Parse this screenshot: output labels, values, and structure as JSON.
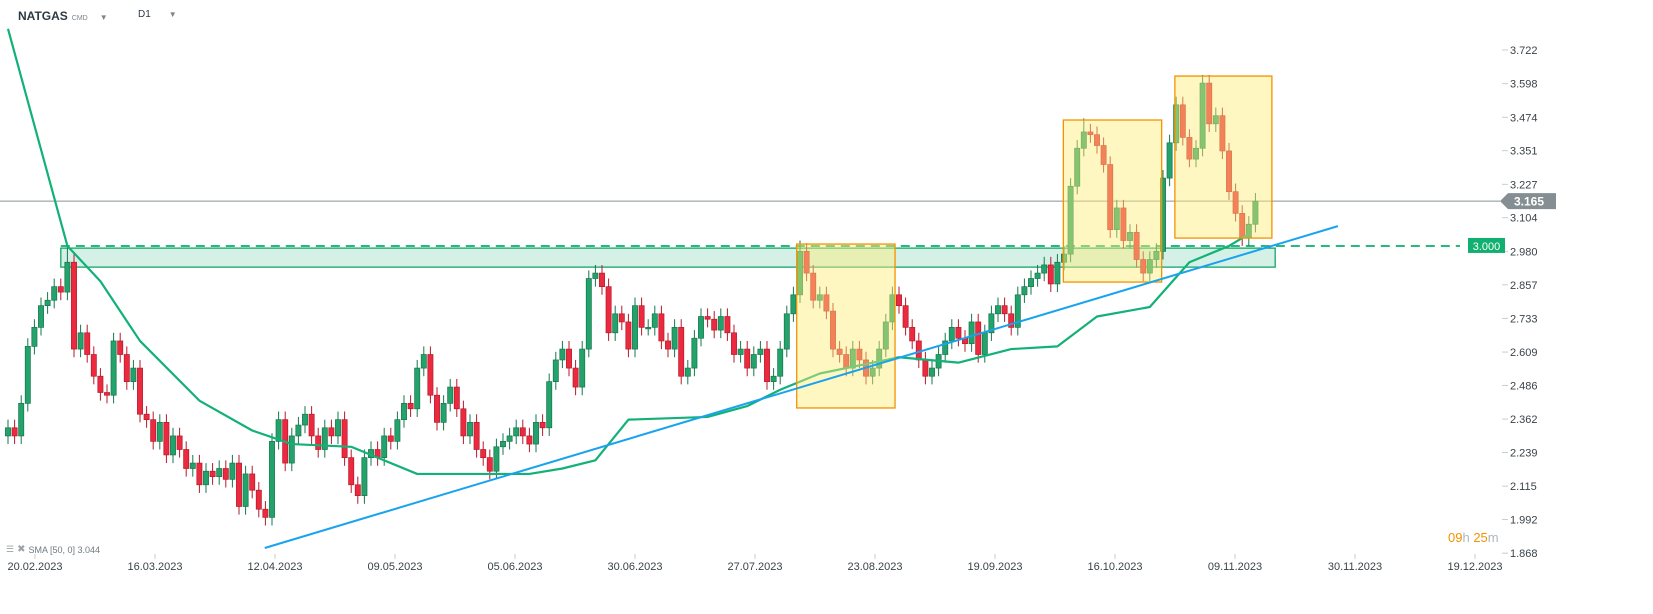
{
  "header": {
    "symbol": "NATGAS",
    "market": "CMD",
    "timeframe": "D1"
  },
  "indicator_legend": {
    "label": "SMA [50, 0] 3.044"
  },
  "timer": {
    "hours": "09",
    "h": "h",
    "minutes": "25",
    "m": "m"
  },
  "colors": {
    "up": "#23a26b",
    "down": "#ec2a3f",
    "sma": "#12b177",
    "trend": "#19a3ee",
    "box": "#f39200",
    "zone": "#14a56a"
  },
  "chart_data": {
    "type": "candlestick",
    "title": "NATGAS D1",
    "y_ticks": [
      3.722,
      3.598,
      3.474,
      3.351,
      3.227,
      3.104,
      2.98,
      2.857,
      2.733,
      2.609,
      2.486,
      2.362,
      2.239,
      2.115,
      1.992,
      1.868
    ],
    "ylim": [
      1.868,
      3.722
    ],
    "x_labels": [
      "20.02.2023",
      "16.03.2023",
      "12.04.2023",
      "09.05.2023",
      "05.06.2023",
      "30.06.2023",
      "27.07.2023",
      "23.08.2023",
      "19.09.2023",
      "16.10.2023",
      "09.11.2023",
      "30.11.2023",
      "19.12.2023"
    ],
    "close": [
      2.33,
      2.3,
      2.42,
      2.63,
      2.7,
      2.78,
      2.8,
      2.85,
      2.83,
      2.94,
      2.62,
      2.68,
      2.6,
      2.52,
      2.46,
      2.45,
      2.65,
      2.6,
      2.5,
      2.55,
      2.38,
      2.36,
      2.28,
      2.35,
      2.23,
      2.3,
      2.25,
      2.18,
      2.2,
      2.12,
      2.17,
      2.15,
      2.18,
      2.14,
      2.2,
      2.04,
      2.16,
      2.1,
      2.03,
      2.0,
      2.28,
      2.36,
      2.2,
      2.3,
      2.34,
      2.38,
      2.3,
      2.25,
      2.33,
      2.3,
      2.36,
      2.22,
      2.12,
      2.08,
      2.22,
      2.25,
      2.22,
      2.3,
      2.28,
      2.36,
      2.42,
      2.4,
      2.55,
      2.6,
      2.45,
      2.35,
      2.42,
      2.48,
      2.4,
      2.3,
      2.35,
      2.25,
      2.22,
      2.17,
      2.26,
      2.28,
      2.3,
      2.33,
      2.3,
      2.27,
      2.35,
      2.33,
      2.5,
      2.58,
      2.62,
      2.55,
      2.48,
      2.62,
      2.88,
      2.9,
      2.85,
      2.68,
      2.75,
      2.72,
      2.62,
      2.78,
      2.7,
      2.7,
      2.75,
      2.65,
      2.62,
      2.7,
      2.52,
      2.55,
      2.66,
      2.74,
      2.73,
      2.69,
      2.74,
      2.68,
      2.6,
      2.62,
      2.55,
      2.6,
      2.62,
      2.5,
      2.52,
      2.62,
      2.75,
      2.82,
      2.98,
      2.9,
      2.8,
      2.82,
      2.76,
      2.62,
      2.6,
      2.55,
      2.62,
      2.58,
      2.52,
      2.55,
      2.62,
      2.72,
      2.82,
      2.78,
      2.7,
      2.65,
      2.58,
      2.52,
      2.55,
      2.6,
      2.65,
      2.7,
      2.66,
      2.64,
      2.72,
      2.6,
      2.68,
      2.75,
      2.78,
      2.75,
      2.7,
      2.82,
      2.85,
      2.88,
      2.9,
      2.93,
      2.86,
      2.94,
      2.97,
      3.22,
      3.36,
      3.42,
      3.41,
      3.37,
      3.3,
      3.06,
      3.14,
      3.02,
      3.05,
      2.95,
      2.9,
      2.95,
      2.98,
      3.25,
      3.38,
      3.52,
      3.4,
      3.32,
      3.36,
      3.6,
      3.45,
      3.48,
      3.35,
      3.2,
      3.12,
      3.03,
      3.08,
      3.165
    ],
    "first_open": 2.3,
    "wick": 0.03,
    "high_overrides": {
      "9": 3.0,
      "89": 2.93,
      "120": 3.02,
      "163": 3.47,
      "181": 3.63
    },
    "sma50": [
      [
        0,
        3.8
      ],
      [
        9,
        3.0
      ],
      [
        14,
        2.87
      ],
      [
        20,
        2.65
      ],
      [
        29,
        2.43
      ],
      [
        37,
        2.32
      ],
      [
        43,
        2.27
      ],
      [
        52,
        2.26
      ],
      [
        62,
        2.16
      ],
      [
        72,
        2.16
      ],
      [
        79,
        2.16
      ],
      [
        84,
        2.18
      ],
      [
        89,
        2.21
      ],
      [
        94,
        2.36
      ],
      [
        106,
        2.37
      ],
      [
        112,
        2.41
      ],
      [
        117,
        2.47
      ],
      [
        123,
        2.53
      ],
      [
        131,
        2.57
      ],
      [
        135,
        2.59
      ],
      [
        144,
        2.57
      ],
      [
        152,
        2.62
      ],
      [
        159,
        2.63
      ],
      [
        165,
        2.74
      ],
      [
        173,
        2.775
      ],
      [
        179,
        2.94
      ],
      [
        185,
        3.0
      ],
      [
        188,
        3.044
      ]
    ],
    "current_price": 3.165,
    "level": 3.0,
    "resistance_zone": {
      "from_index": 8,
      "to_index": 192,
      "low": 2.922,
      "high": 2.992
    },
    "trendline": {
      "from": [
        38.9,
        1.887
      ],
      "to": [
        201.5,
        3.073
      ]
    },
    "boxes": [
      {
        "from_index": 119.5,
        "to_index": 134.4,
        "low": 2.403,
        "high": 3.007
      },
      {
        "from_index": 159.9,
        "to_index": 174.8,
        "low": 2.867,
        "high": 3.464
      },
      {
        "from_index": 176.8,
        "to_index": 191.5,
        "low": 3.029,
        "high": 3.626
      }
    ],
    "current_price_label": "3.165",
    "level_label": "3.000"
  }
}
